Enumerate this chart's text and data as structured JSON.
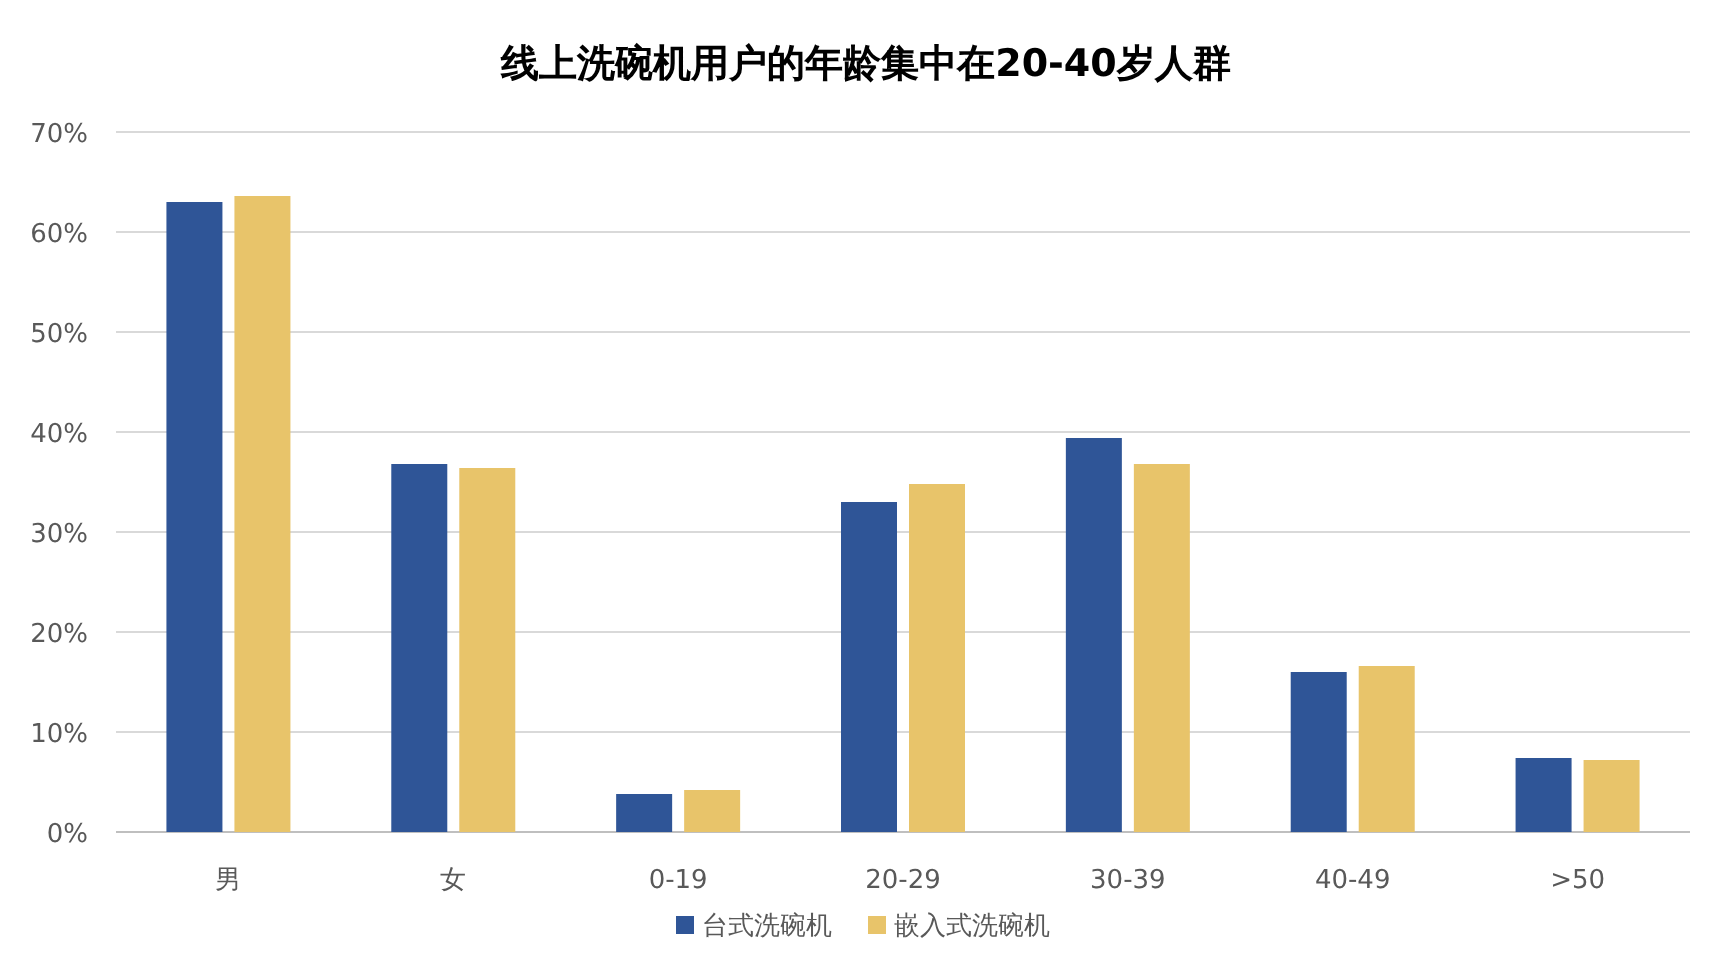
{
  "chart_data": {
    "type": "bar",
    "title": "线上洗碗机用户的年龄集中在20-40岁人群",
    "categories": [
      "男",
      "女",
      "0-19",
      "20-29",
      "30-39",
      "40-49",
      ">50"
    ],
    "series": [
      {
        "name": "台式洗碗机",
        "color": "#2f5597",
        "values": [
          63,
          36.8,
          3.8,
          33,
          39.4,
          16,
          7.4
        ]
      },
      {
        "name": "嵌入式洗碗机",
        "color": "#e8c46a",
        "values": [
          63.6,
          36.4,
          4.2,
          34.8,
          36.8,
          16.6,
          7.2
        ]
      }
    ],
    "ylim": [
      0,
      70
    ],
    "yticks": [
      {
        "value": 0,
        "label": "0%"
      },
      {
        "value": 10,
        "label": "10%"
      },
      {
        "value": 20,
        "label": "20%"
      },
      {
        "value": 30,
        "label": "30%"
      },
      {
        "value": 40,
        "label": "40%"
      },
      {
        "value": 50,
        "label": "50%"
      },
      {
        "value": 60,
        "label": "60%"
      },
      {
        "value": 70,
        "label": "70%"
      }
    ],
    "grid": "y",
    "legend": "bottom"
  }
}
